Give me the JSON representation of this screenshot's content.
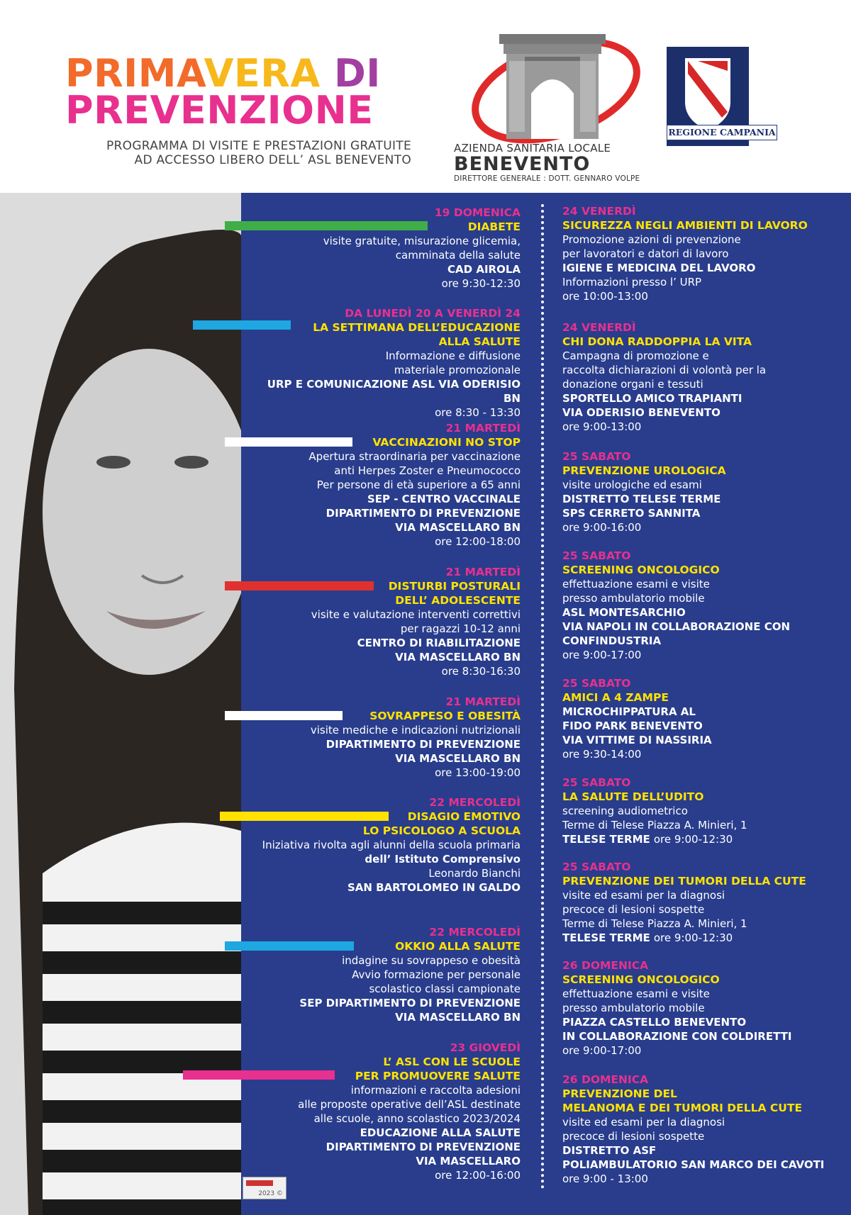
{
  "header": {
    "title_parts": [
      "PRIMA",
      "VERA",
      " DI",
      "PREVENZIONE"
    ],
    "subtitle_line1": "PROGRAMMA DI VISITE E PRESTAZIONI GRATUITE",
    "subtitle_line2": "AD ACCESSO LIBERO DELL’ ASL BENEVENTO",
    "asl_line1": "AZIENDA SANITARIA LOCALE",
    "asl_line2": "BENEVENTO",
    "asl_line3": "DIRETTORE  GENERALE : DOTT. GENNARO VOLPE",
    "region_label": "REGIONE CAMPANIA",
    "footer_stamp": "2023 ©"
  },
  "colors": {
    "panel": "#293d8c",
    "date": "#e8308f",
    "title": "#ffe200",
    "bar_green": "#3fae49",
    "bar_cyan": "#1ea7e1",
    "bar_white": "#ffffff",
    "bar_red": "#e0312f",
    "bar_yellow": "#ffe200",
    "bar_magenta": "#e8308f"
  },
  "left": [
    {
      "date": "19 DOMENICA",
      "title": [
        "DIABETE"
      ],
      "text": [
        "visite gratuite, misurazione glicemia,",
        "camminata della salute"
      ],
      "bold": [
        "CAD AIROLA"
      ],
      "time": "ore 9:30-12:30"
    },
    {
      "date": "DA LUNEDÌ 20 A VENERDÌ 24",
      "title": [
        "LA SETTIMANA DELL’EDUCAZIONE",
        "ALLA SALUTE"
      ],
      "text": [
        "Informazione e diffusione",
        "materiale promozionale"
      ],
      "bold": [
        "URP E COMUNICAZIONE ASL VIA ODERISIO BN"
      ],
      "time": "ore 8:30 - 13:30"
    },
    {
      "date": "21 MARTEDÌ",
      "title": [
        "VACCINAZIONI NO STOP"
      ],
      "text": [
        "Apertura straordinaria per vaccinazione",
        "anti Herpes Zoster e Pneumococco",
        "Per persone di età superiore a 65 anni"
      ],
      "bold": [
        "SEP  - CENTRO VACCINALE",
        "DIPARTIMENTO DI PREVENZIONE",
        "VIA  MASCELLARO BN"
      ],
      "time": "ore 12:00-18:00"
    },
    {
      "date": "21 MARTEDÌ",
      "title": [
        "DISTURBI POSTURALI",
        "DELL’ ADOLESCENTE"
      ],
      "text": [
        "visite e valutazione interventi correttivi",
        "per ragazzi 10-12 anni"
      ],
      "bold": [
        "CENTRO DI RIABILITAZIONE",
        "VIA MASCELLARO BN"
      ],
      "time": "ore 8:30-16:30"
    },
    {
      "date": "21 MARTEDÌ",
      "title": [
        "SOVRAPPESO E OBESITÀ"
      ],
      "text": [
        "visite mediche e indicazioni nutrizionali"
      ],
      "bold": [
        "DIPARTIMENTO DI PREVENZIONE",
        "VIA MASCELLARO BN"
      ],
      "time": "ore 13:00-19:00"
    },
    {
      "date": "22 MERCOLEDÌ",
      "title": [
        "DISAGIO EMOTIVO",
        "LO PSICOLOGO A SCUOLA"
      ],
      "text": [
        "Iniziativa rivolta agli alunni della scuola primaria"
      ],
      "bold": [
        "dell’ Istituto Comprensivo"
      ],
      "text2": [
        "Leonardo Bianchi"
      ],
      "bold2": [
        "SAN BARTOLOMEO IN GALDO"
      ],
      "time": ""
    },
    {
      "date": "22 MERCOLEDÌ",
      "title": [
        "OKKIO ALLA SALUTE"
      ],
      "text": [
        "indagine su sovrappeso e obesità",
        "Avvio formazione per personale",
        "scolastico classi campionate"
      ],
      "bold": [
        "SEP DIPARTIMENTO DI PREVENZIONE",
        "VIA MASCELLARO BN"
      ],
      "time": ""
    },
    {
      "date": "23 GIOVEDÌ",
      "title": [
        "L’ ASL CON LE SCUOLE",
        "PER PROMUOVERE SALUTE"
      ],
      "text": [
        "informazioni e raccolta adesioni",
        "alle proposte operative dell’ASL destinate",
        "alle scuole, anno scolastico 2023/2024"
      ],
      "bold": [
        "EDUCAZIONE ALLA SALUTE",
        "DIPARTIMENTO DI PREVENZIONE",
        "VIA MASCELLARO"
      ],
      "time": "ore 12:00-16:00"
    }
  ],
  "right": [
    {
      "date": "24 VENERDÌ",
      "title": [
        "SICUREZZA NEGLI AMBIENTI DI LAVORO"
      ],
      "text": [
        "Promozione azioni di prevenzione",
        "per lavoratori e datori di lavoro"
      ],
      "bold": [
        "IGIENE E MEDICINA DEL LAVORO"
      ],
      "text2": [
        "Informazioni presso l’ URP"
      ],
      "time": "ore 10:00-13:00"
    },
    {
      "date": "24 VENERDÌ",
      "title": [
        "CHI DONA RADDOPPIA LA VITA"
      ],
      "text": [
        "Campagna di promozione e",
        "raccolta dichiarazioni di volontà per la",
        "donazione organi e tessuti"
      ],
      "bold": [
        "SPORTELLO AMICO TRAPIANTI",
        "VIA ODERISIO BENEVENTO"
      ],
      "time": "ore 9:00-13:00"
    },
    {
      "date": "25 SABATO",
      "title": [
        "PREVENZIONE UROLOGICA"
      ],
      "text": [
        "visite urologiche ed esami"
      ],
      "bold": [
        "DISTRETTO TELESE TERME",
        "SPS CERRETO SANNITA"
      ],
      "time": "ore 9:00-16:00"
    },
    {
      "date": "25 SABATO",
      "title": [
        "SCREENING ONCOLOGICO"
      ],
      "text": [
        "effettuazione esami e visite",
        "presso ambulatorio mobile"
      ],
      "bold": [
        "ASL MONTESARCHIO",
        "VIA NAPOLI IN COLLABORAZIONE CON",
        "CONFINDUSTRIA"
      ],
      "time": "ore 9:00-17:00"
    },
    {
      "date": "25 SABATO",
      "title": [
        "AMICI A 4 ZAMPE"
      ],
      "text": [],
      "bold": [
        "MICROCHIPPATURA AL",
        "FIDO PARK BENEVENTO",
        "VIA VITTIME DI NASSIRIA"
      ],
      "time": "ore 9:30-14:00"
    },
    {
      "date": "25 SABATO",
      "title": [
        "LA SALUTE DELL’UDITO"
      ],
      "text": [
        "screening audiometrico",
        "Terme di Telese Piazza A.  Minieri, 1"
      ],
      "bold": [
        "TELESE TERME"
      ],
      "time": "ore 9:00-12:30",
      "inline_time": true
    },
    {
      "date": "25 SABATO",
      "title": [
        "PREVENZIONE DEI TUMORI DELLA CUTE"
      ],
      "text": [
        "visite ed esami per la diagnosi",
        "precoce di lesioni sospette",
        "Terme di Telese Piazza A. Minieri, 1"
      ],
      "bold": [
        "TELESE TERME"
      ],
      "time": "ore 9:00-12:30",
      "inline_time": true
    },
    {
      "date": "26 DOMENICA",
      "title": [
        "SCREENING ONCOLOGICO"
      ],
      "text": [
        "effettuazione esami e visite",
        "presso ambulatorio mobile"
      ],
      "bold": [
        "PIAZZA CASTELLO BENEVENTO",
        "IN COLLABORAZIONE CON COLDIRETTI"
      ],
      "time": "ore 9:00-17:00"
    },
    {
      "date": "26 DOMENICA",
      "title": [
        "PREVENZIONE DEL",
        "MELANOMA E DEI TUMORI DELLA CUTE"
      ],
      "text": [
        "visite ed esami per la diagnosi",
        "precoce di lesioni sospette"
      ],
      "bold": [
        "DISTRETTO ASF",
        "POLIAMBULATORIO SAN MARCO DEI CAVOTI"
      ],
      "time": "ore 9:00 - 13:00"
    }
  ]
}
